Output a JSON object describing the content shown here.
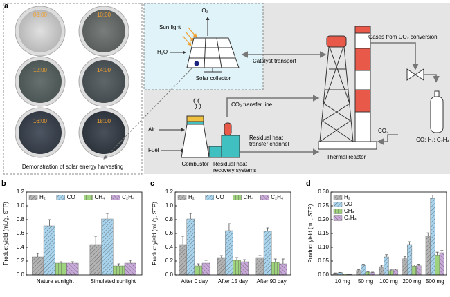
{
  "diagram": {
    "panel": "a",
    "dish_times": [
      "08:00",
      "10:00",
      "12:00",
      "14:00",
      "16:00",
      "18:00"
    ],
    "caption": "Demonstration of solar energy harvesting",
    "sun_light": "Sun light",
    "o2": "O₂",
    "h2o": "H₂O",
    "solar_collector": "Solar collector",
    "catalyst_transport": "Catalyst transport",
    "gases": "Gases from CO₂ conversion",
    "co2_line": "CO₂ transfer line",
    "air": "Air",
    "fuel": "Fuel",
    "combustor": "Combustor",
    "recovery": [
      "Residual heat",
      "recovery systems"
    ],
    "channel": [
      "Residual heat",
      "transfer channel"
    ],
    "co2": "CO₂",
    "thermal_reactor": "Thermal reactor",
    "products": "CO; H₂; C₂H₄"
  },
  "chart_data": [
    {
      "type": "bar",
      "panel": "b",
      "ylabel": "Product yield (mL/g, STP)",
      "categories": [
        "Nature sunlight",
        "Simulated sunlight"
      ],
      "ylim": [
        0,
        1.2
      ],
      "yticks": [
        {
          "value": 0,
          "label": "0.0"
        },
        0.2,
        0.4,
        0.6,
        0.8,
        {
          "value": 1,
          "label": "1.0"
        },
        1.2
      ],
      "legend": "top",
      "series": [
        {
          "name": "H₂",
          "color": "#b3b3b3",
          "values": [
            0.26,
            0.44
          ],
          "errors": [
            0.05,
            0.12
          ]
        },
        {
          "name": "CO",
          "color": "#a8d4ee",
          "values": [
            0.71,
            0.81
          ],
          "errors": [
            0.09,
            0.08
          ]
        },
        {
          "name": "CH₄",
          "color": "#9ed27c",
          "values": [
            0.17,
            0.13
          ],
          "errors": [
            0.02,
            0.03
          ]
        },
        {
          "name": "C₂H₄",
          "color": "#c8a9d9",
          "values": [
            0.17,
            0.17
          ],
          "errors": [
            0.02,
            0.04
          ]
        }
      ]
    },
    {
      "type": "bar",
      "panel": "c",
      "ylabel": "Product yield (mL/g, STP)",
      "categories": [
        "After 0 day",
        "After 15 day",
        "After 90 day"
      ],
      "ylim": [
        0,
        1.2
      ],
      "yticks": [
        {
          "value": 0,
          "label": "0.0"
        },
        0.2,
        0.4,
        0.6,
        0.8,
        {
          "value": 1,
          "label": "1.0"
        },
        1.2
      ],
      "legend": "top",
      "series": [
        {
          "name": "H₂",
          "color": "#b3b3b3",
          "values": [
            0.44,
            0.25,
            0.25
          ],
          "errors": [
            0.12,
            0.03,
            0.03
          ]
        },
        {
          "name": "CO",
          "color": "#a8d4ee",
          "values": [
            0.81,
            0.64,
            0.63
          ],
          "errors": [
            0.08,
            0.1,
            0.05
          ]
        },
        {
          "name": "CH₄",
          "color": "#9ed27c",
          "values": [
            0.13,
            0.21,
            0.18
          ],
          "errors": [
            0.03,
            0.04,
            0.05
          ]
        },
        {
          "name": "C₂H₄",
          "color": "#c8a9d9",
          "values": [
            0.17,
            0.19,
            0.16
          ],
          "errors": [
            0.04,
            0.03,
            0.07
          ]
        }
      ]
    },
    {
      "type": "bar",
      "panel": "d",
      "ylabel": "Product yield (mL, STP)",
      "categories": [
        "10 mg",
        "50 mg",
        "100 mg",
        "200 mg",
        "500 mg"
      ],
      "ylim": [
        0,
        0.3
      ],
      "yticks": [
        {
          "value": 0,
          "label": "0.00"
        },
        0.05,
        {
          "value": 0.1,
          "label": "0.10"
        },
        0.15,
        {
          "value": 0.2,
          "label": "0.20"
        },
        0.25,
        {
          "value": 0.3,
          "label": "0.30"
        }
      ],
      "legend": "top-left",
      "series": [
        {
          "name": "H₂",
          "color": "#b3b3b3",
          "values": [
            0.006,
            0.016,
            0.03,
            0.058,
            0.14
          ],
          "errors": [
            0.001,
            0.003,
            0.005,
            0.008,
            0.012
          ]
        },
        {
          "name": "CO",
          "color": "#a8d4ee",
          "values": [
            0.008,
            0.035,
            0.065,
            0.11,
            0.277
          ],
          "errors": [
            0.001,
            0.004,
            0.008,
            0.01,
            0.012
          ]
        },
        {
          "name": "CH₄",
          "color": "#9ed27c",
          "values": [
            0.003,
            0.01,
            0.015,
            0.032,
            0.072
          ],
          "errors": [
            0.001,
            0.002,
            0.003,
            0.004,
            0.01
          ]
        },
        {
          "name": "C₂H₄",
          "color": "#c8a9d9",
          "values": [
            0.002,
            0.008,
            0.018,
            0.033,
            0.08
          ],
          "errors": [
            0.001,
            0.002,
            0.003,
            0.006,
            0.008
          ]
        }
      ]
    }
  ]
}
